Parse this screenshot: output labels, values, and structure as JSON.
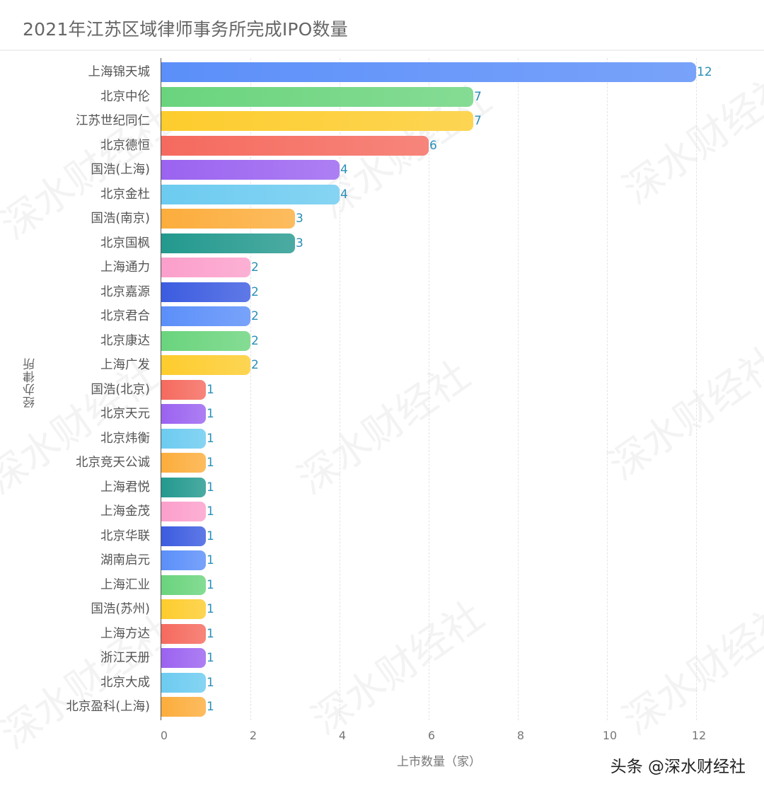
{
  "title": "2021年江苏区域律师事务所完成IPO数量",
  "source": "头条 @深水财经社",
  "watermark": "深水财经社",
  "chart_data": {
    "type": "bar",
    "orientation": "horizontal",
    "title": "2021年江苏区域律师事务所完成IPO数量",
    "xlabel": "上市数量（家）",
    "ylabel": "经办律所",
    "xlim": [
      0,
      12
    ],
    "xticks": [
      "0",
      "2",
      "4",
      "6",
      "8",
      "10",
      "12"
    ],
    "grid": "vertical dashed",
    "categories": [
      "上海锦天城",
      "北京中伦",
      "江苏世纪同仁",
      "北京德恒",
      "国浩(上海)",
      "北京金杜",
      "国浩(南京)",
      "北京国枫",
      "上海通力",
      "北京嘉源",
      "北京君合",
      "北京康达",
      "上海广发",
      "国浩(北京)",
      "北京天元",
      "北京炜衡",
      "北京竞天公诚",
      "上海君悦",
      "上海金茂",
      "北京华联",
      "湖南启元",
      "上海汇业",
      "国浩(苏州)",
      "上海方达",
      "浙江天册",
      "北京大成",
      "北京盈科(上海)"
    ],
    "values": [
      12,
      7,
      7,
      6,
      4,
      4,
      3,
      3,
      2,
      2,
      2,
      2,
      2,
      1,
      1,
      1,
      1,
      1,
      1,
      1,
      1,
      1,
      1,
      1,
      1,
      1,
      1
    ],
    "colors": [
      "#5b8ff9",
      "#6ad47d",
      "#fdcc2d",
      "#f56a5e",
      "#9b63f0",
      "#6ccbf0",
      "#fcad3c",
      "#23998e",
      "#fb9fcb",
      "#3c5ce0",
      "#5b8ff9",
      "#6ad47d",
      "#fdcc2d",
      "#f56a5e",
      "#9b63f0",
      "#6ccbf0",
      "#fcad3c",
      "#23998e",
      "#fb9fcb",
      "#3c5ce0",
      "#5b8ff9",
      "#6ad47d",
      "#fdcc2d",
      "#f56a5e",
      "#9b63f0",
      "#6ccbf0",
      "#fcad3c"
    ],
    "value_label_color": "#2a8fb7"
  }
}
